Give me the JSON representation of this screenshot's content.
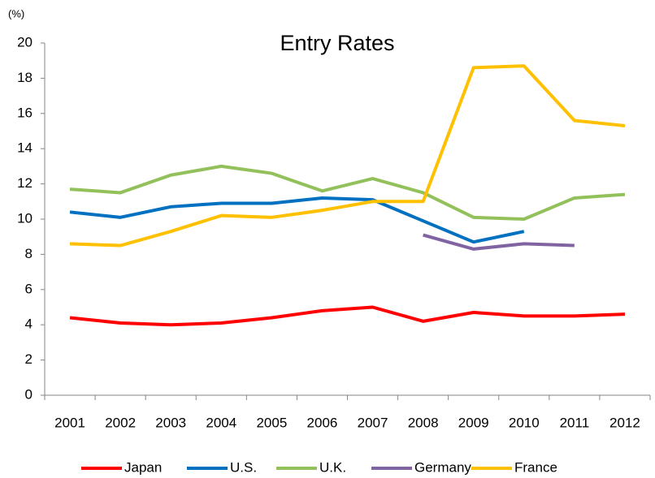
{
  "chart_data": {
    "type": "line",
    "title": "Entry Rates",
    "y_unit": "(%)",
    "categories": [
      "2001",
      "2002",
      "2003",
      "2004",
      "2005",
      "2006",
      "2007",
      "2008",
      "2009",
      "2010",
      "2011",
      "2012"
    ],
    "series": [
      {
        "name": "Japan",
        "color": "#ff0000",
        "values": [
          4.4,
          4.1,
          4.0,
          4.1,
          4.4,
          4.8,
          5.0,
          4.2,
          4.7,
          4.5,
          4.5,
          4.6
        ]
      },
      {
        "name": "U.S.",
        "color": "#0070c0",
        "values": [
          10.4,
          10.1,
          10.7,
          10.9,
          10.9,
          11.2,
          11.1,
          9.9,
          8.7,
          9.3,
          null,
          null
        ]
      },
      {
        "name": "U.K.",
        "color": "#92c05a",
        "values": [
          11.7,
          11.5,
          12.5,
          13.0,
          12.6,
          11.6,
          12.3,
          11.5,
          10.1,
          10.0,
          11.2,
          11.4
        ]
      },
      {
        "name": "Germany",
        "color": "#8064a2",
        "values": [
          null,
          null,
          null,
          null,
          null,
          null,
          null,
          9.1,
          8.3,
          8.6,
          8.5,
          null
        ]
      },
      {
        "name": "France",
        "color": "#ffc000",
        "values": [
          8.6,
          8.5,
          9.3,
          10.2,
          10.1,
          10.5,
          11.0,
          11.0,
          18.6,
          18.7,
          15.6,
          15.3
        ]
      }
    ],
    "ylim": [
      0,
      20
    ],
    "yticks": [
      0,
      2,
      4,
      6,
      8,
      10,
      12,
      14,
      16,
      18,
      20
    ],
    "grid": false,
    "legend": "bottom"
  }
}
